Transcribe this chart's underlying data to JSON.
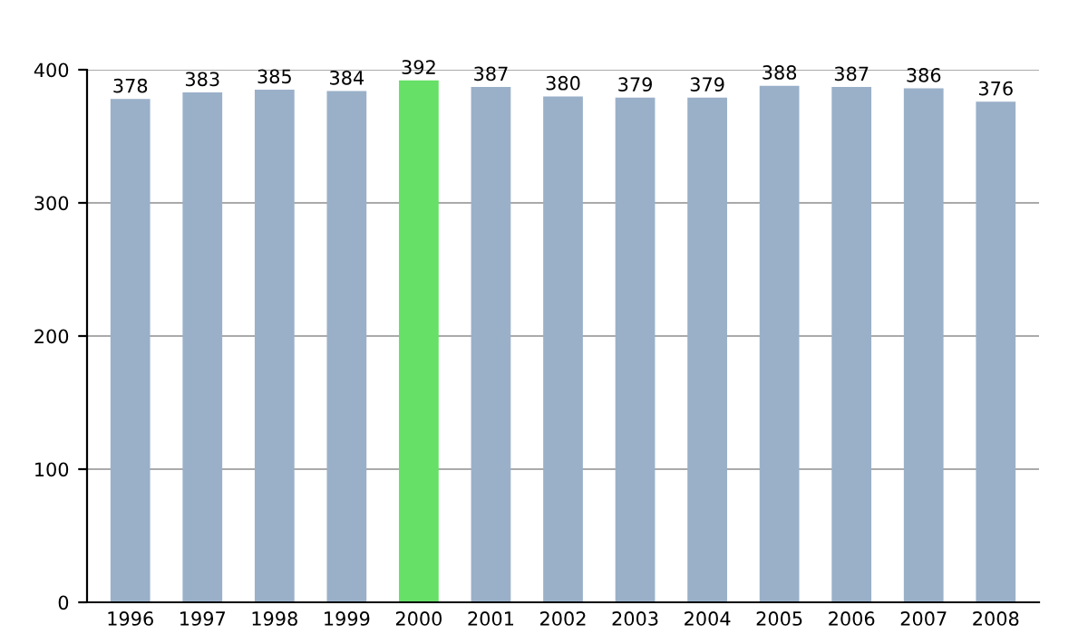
{
  "chart_data": {
    "type": "bar",
    "categories": [
      "1996",
      "1997",
      "1998",
      "1999",
      "2000",
      "2001",
      "2002",
      "2003",
      "2004",
      "2005",
      "2006",
      "2007",
      "2008"
    ],
    "values": [
      378,
      383,
      385,
      384,
      392,
      387,
      380,
      379,
      379,
      388,
      387,
      386,
      376
    ],
    "colors": [
      "#9ab0c9",
      "#9ab0c9",
      "#9ab0c9",
      "#9ab0c9",
      "#66e066",
      "#9ab0c9",
      "#9ab0c9",
      "#9ab0c9",
      "#9ab0c9",
      "#9ab0c9",
      "#9ab0c9",
      "#9ab0c9",
      "#9ab0c9"
    ],
    "ylim": [
      0,
      400
    ],
    "yticks": [
      0,
      100,
      200,
      300,
      400
    ],
    "grid": "y",
    "data_labels": true
  }
}
